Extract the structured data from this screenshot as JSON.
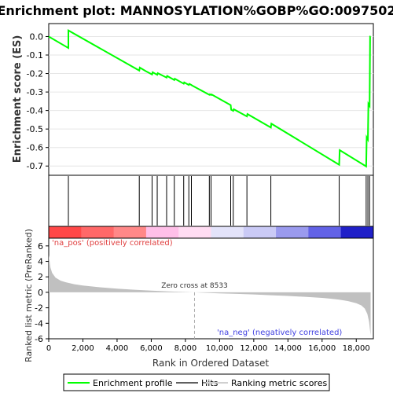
{
  "chart_data": {
    "type": "line",
    "title": "Enrichment plot: MANNOSYLATION%GOBP%GO:0097502",
    "es_panel": {
      "ylabel": "Enrichment score (ES)",
      "ylim": [
        -0.75,
        0.07
      ],
      "yticks": [
        0.0,
        -0.1,
        -0.2,
        -0.3,
        -0.4,
        -0.5,
        -0.6,
        -0.7
      ],
      "ytick_labels": [
        "0.0",
        "-0.1",
        "-0.2",
        "-0.3",
        "-0.4",
        "-0.5",
        "-0.6",
        "-0.7"
      ],
      "series": [
        {
          "name": "Enrichment profile",
          "color": "#00ff00",
          "x": [
            0,
            1150,
            1150,
            5300,
            5330,
            5700,
            6050,
            6080,
            6350,
            6380,
            6900,
            6930,
            7350,
            7380,
            7900,
            7930,
            8200,
            8230,
            8350,
            8380,
            9400,
            9430,
            9500,
            9530,
            10650,
            10680,
            10800,
            10830,
            11600,
            11630,
            13000,
            13030,
            17000,
            17030,
            18580,
            18610,
            18680,
            18710,
            18780,
            18810,
            18840
          ],
          "y": [
            0.0,
            -0.062,
            0.033,
            -0.184,
            -0.168,
            -0.188,
            -0.205,
            -0.193,
            -0.207,
            -0.198,
            -0.222,
            -0.213,
            -0.235,
            -0.228,
            -0.255,
            -0.248,
            -0.262,
            -0.256,
            -0.262,
            -0.264,
            -0.315,
            -0.312,
            -0.316,
            -0.313,
            -0.371,
            -0.396,
            -0.402,
            -0.393,
            -0.432,
            -0.419,
            -0.492,
            -0.471,
            -0.693,
            -0.614,
            -0.702,
            -0.545,
            -0.557,
            -0.364,
            -0.375,
            0.0,
            0.0
          ]
        }
      ]
    },
    "hits": {
      "name": "Hits",
      "x": [
        1150,
        5300,
        6050,
        6350,
        6900,
        7350,
        7900,
        8200,
        8350,
        9400,
        9500,
        10650,
        10800,
        11600,
        13000,
        17000,
        18580,
        18680,
        18780
      ]
    },
    "ranking_metric": {
      "name": "Ranking metric scores",
      "xlabel": "Rank in Ordered Dataset",
      "ylabel": "Ranked list metric (PreRanked)",
      "ylim": [
        -6,
        7
      ],
      "yticks": [
        6,
        4,
        2,
        0,
        -2,
        -4,
        -6
      ],
      "xlim": [
        0,
        19000
      ],
      "xticks": [
        0,
        2000,
        4000,
        6000,
        8000,
        10000,
        12000,
        14000,
        16000,
        18000
      ],
      "xtick_labels": [
        "0",
        "2,000",
        "4,000",
        "6,000",
        "8,000",
        "10,000",
        "12,000",
        "14,000",
        "16,000",
        "18,000"
      ],
      "zero_cross": 8533,
      "zero_cross_label": "Zero cross at 8533",
      "pos_label": "'na_pos' (positively correlated)",
      "neg_label": "'na_neg' (negatively correlated)",
      "curve_x": [
        0,
        100,
        200,
        400,
        700,
        1000,
        1500,
        2000,
        3000,
        4000,
        5000,
        6000,
        7000,
        8000,
        8533,
        9000,
        10000,
        11000,
        12000,
        13000,
        14000,
        15000,
        16000,
        16500,
        17000,
        17500,
        18000,
        18300,
        18500,
        18650,
        18750,
        18840
      ],
      "curve_y": [
        4.8,
        3.2,
        2.5,
        1.9,
        1.5,
        1.3,
        1.05,
        0.88,
        0.65,
        0.48,
        0.34,
        0.22,
        0.12,
        0.04,
        0.0,
        -0.05,
        -0.13,
        -0.2,
        -0.28,
        -0.37,
        -0.47,
        -0.58,
        -0.72,
        -0.82,
        -0.95,
        -1.12,
        -1.4,
        -1.7,
        -2.1,
        -2.8,
        -3.8,
        -5.6
      ],
      "color_bar": [
        "#ff4848",
        "#ff6868",
        "#ff8888",
        "#ffbfe8",
        "#ffdcf2",
        "#e3e3fa",
        "#cacaf6",
        "#9a9aee",
        "#6262e6",
        "#2020c8"
      ]
    },
    "legend": {
      "items": [
        {
          "label": "Enrichment profile",
          "color": "#00ff00"
        },
        {
          "label": "Hits",
          "color": "#606060"
        },
        {
          "label": "Ranking metric scores",
          "color": "#d0d0d0"
        }
      ]
    }
  }
}
